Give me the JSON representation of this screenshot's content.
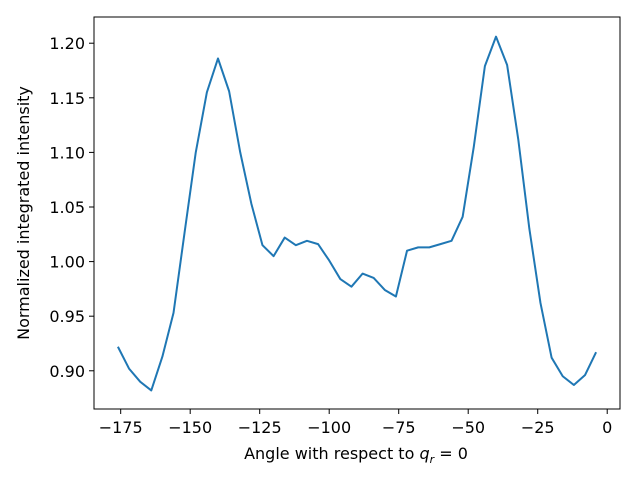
{
  "chart_data": {
    "type": "line",
    "ylabel": "Normalized integrated intensity",
    "xlabel_parts": [
      "Angle with respect to ",
      "q",
      "r",
      " = 0"
    ],
    "x": [
      -176,
      -172,
      -168,
      -164,
      -160,
      -156,
      -152,
      -148,
      -144,
      -140,
      -136,
      -132,
      -128,
      -124,
      -120,
      -116,
      -112,
      -108,
      -104,
      -100,
      -96,
      -92,
      -88,
      -84,
      -80,
      -76,
      -72,
      -68,
      -64,
      -60,
      -56,
      -52,
      -48,
      -44,
      -40,
      -36,
      -32,
      -28,
      -24,
      -20,
      -16,
      -12,
      -8,
      -4
    ],
    "series": [
      {
        "color": "#1f77b4",
        "values": [
          0.922,
          0.902,
          0.89,
          0.882,
          0.913,
          0.953,
          1.027,
          1.1,
          1.155,
          1.186,
          1.156,
          1.1,
          1.053,
          1.015,
          1.005,
          1.022,
          1.015,
          1.019,
          1.016,
          1.001,
          0.984,
          0.977,
          0.989,
          0.985,
          0.974,
          0.968,
          1.01,
          1.013,
          1.013,
          1.016,
          1.019,
          1.041,
          1.105,
          1.179,
          1.206,
          1.18,
          1.112,
          1.03,
          0.962,
          0.912,
          0.895,
          0.887,
          0.896,
          0.917
        ]
      }
    ],
    "xlim": [
      -184.6,
      4.6
    ],
    "ylim": [
      0.865,
      1.224
    ],
    "xticks": [
      {
        "value": -175,
        "label": "−175"
      },
      {
        "value": -150,
        "label": "−150"
      },
      {
        "value": -125,
        "label": "−125"
      },
      {
        "value": -100,
        "label": "−100"
      },
      {
        "value": -75,
        "label": "−75"
      },
      {
        "value": -50,
        "label": "−50"
      },
      {
        "value": -25,
        "label": "−25"
      },
      0
    ],
    "yticks": [
      {
        "value": 0.9,
        "label": "0.90"
      },
      0.95,
      {
        "value": 1.0,
        "label": "1.00"
      },
      1.05,
      {
        "value": 1.1,
        "label": "1.10"
      },
      1.15,
      {
        "value": 1.2,
        "label": "1.20"
      }
    ],
    "grid": false
  }
}
